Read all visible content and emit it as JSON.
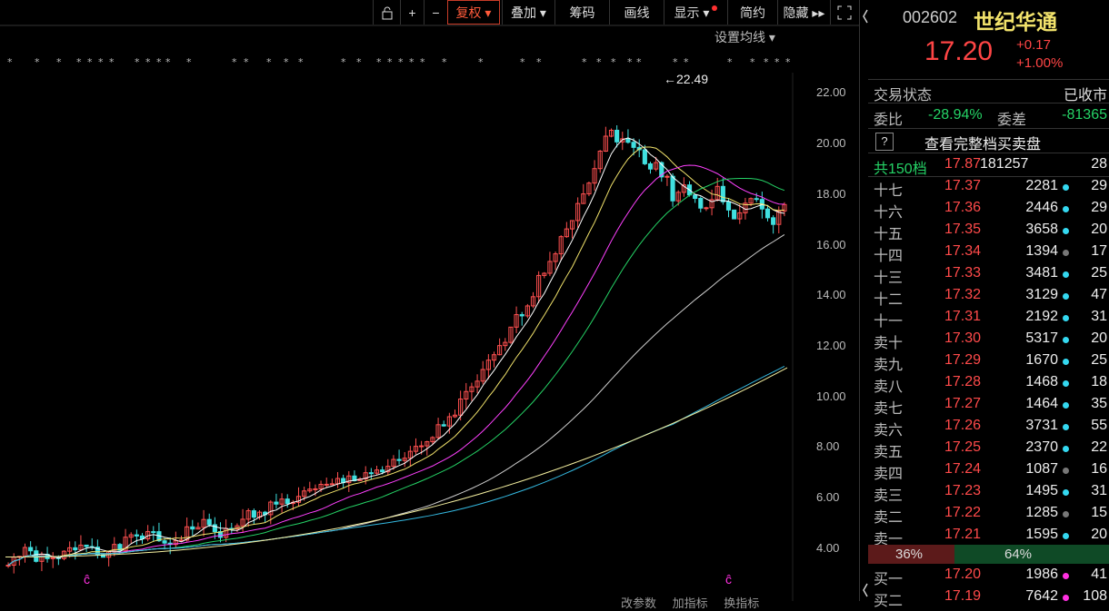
{
  "toolbar": {
    "buttons": [
      "复权 ▾",
      "叠加 ▾",
      "筹码",
      "画线",
      "显示 ▾",
      "简约",
      "隐藏 ▸▸"
    ],
    "ma_setting": "设置均线 ▾"
  },
  "chart": {
    "price_labels": [
      "22.00",
      "20.00",
      "18.00",
      "16.00",
      "14.00",
      "12.00",
      "10.00",
      "8.00",
      "6.00",
      "4.00"
    ],
    "high_label": "←22.49",
    "bottom_labels": [
      "改参数",
      "加指标",
      "换指标"
    ],
    "marker": "ĉ"
  },
  "quote": {
    "code": "002602",
    "name": "世纪华通",
    "price": "17.20",
    "change": "+0.17",
    "change_pct": "+1.00%",
    "status_label": "交易状态",
    "status_value": "已收市",
    "weibi_label": "委比",
    "weibi_value": "-28.94%",
    "weicha_label": "委差",
    "weicha_value": "-81365",
    "help": "?",
    "full_book": "查看完整档买卖盘",
    "total_label": "共150档",
    "total_price": "17.87",
    "total_vol": "181257",
    "total_cnt": "28",
    "ratio_left": "36%",
    "ratio_right": "64%",
    "colors": {
      "up": "#ff4545",
      "down": "#25d366",
      "cyan": "#34d8f0",
      "magenta": "#ff30e0",
      "gray": "#777777"
    }
  },
  "sells": [
    {
      "label": "十七",
      "price": "17.37",
      "vol": "2281",
      "dot": "cyan",
      "cnt": "29"
    },
    {
      "label": "十六",
      "price": "17.36",
      "vol": "2446",
      "dot": "cyan",
      "cnt": "29"
    },
    {
      "label": "十五",
      "price": "17.35",
      "vol": "3658",
      "dot": "cyan",
      "cnt": "20"
    },
    {
      "label": "十四",
      "price": "17.34",
      "vol": "1394",
      "dot": "gray",
      "cnt": "17"
    },
    {
      "label": "十三",
      "price": "17.33",
      "vol": "3481",
      "dot": "cyan",
      "cnt": "25"
    },
    {
      "label": "十二",
      "price": "17.32",
      "vol": "3129",
      "dot": "cyan",
      "cnt": "47"
    },
    {
      "label": "十一",
      "price": "17.31",
      "vol": "2192",
      "dot": "cyan",
      "cnt": "31"
    },
    {
      "label": "卖十",
      "price": "17.30",
      "vol": "5317",
      "dot": "cyan",
      "cnt": "20"
    },
    {
      "label": "卖九",
      "price": "17.29",
      "vol": "1670",
      "dot": "cyan",
      "cnt": "25"
    },
    {
      "label": "卖八",
      "price": "17.28",
      "vol": "1468",
      "dot": "cyan",
      "cnt": "18"
    },
    {
      "label": "卖七",
      "price": "17.27",
      "vol": "1464",
      "dot": "cyan",
      "cnt": "35"
    },
    {
      "label": "卖六",
      "price": "17.26",
      "vol": "3731",
      "dot": "cyan",
      "cnt": "55"
    },
    {
      "label": "卖五",
      "price": "17.25",
      "vol": "2370",
      "dot": "cyan",
      "cnt": "22"
    },
    {
      "label": "卖四",
      "price": "17.24",
      "vol": "1087",
      "dot": "gray",
      "cnt": "16"
    },
    {
      "label": "卖三",
      "price": "17.23",
      "vol": "1495",
      "dot": "cyan",
      "cnt": "31"
    },
    {
      "label": "卖二",
      "price": "17.22",
      "vol": "1285",
      "dot": "gray",
      "cnt": "15"
    },
    {
      "label": "卖一",
      "price": "17.21",
      "vol": "1595",
      "dot": "cyan",
      "cnt": "20"
    }
  ],
  "buys": [
    {
      "label": "买一",
      "price": "17.20",
      "vol": "1986",
      "dot": "magenta",
      "cnt": "41"
    },
    {
      "label": "买二",
      "price": "17.19",
      "vol": "7642",
      "dot": "magenta",
      "cnt": "108"
    }
  ]
}
